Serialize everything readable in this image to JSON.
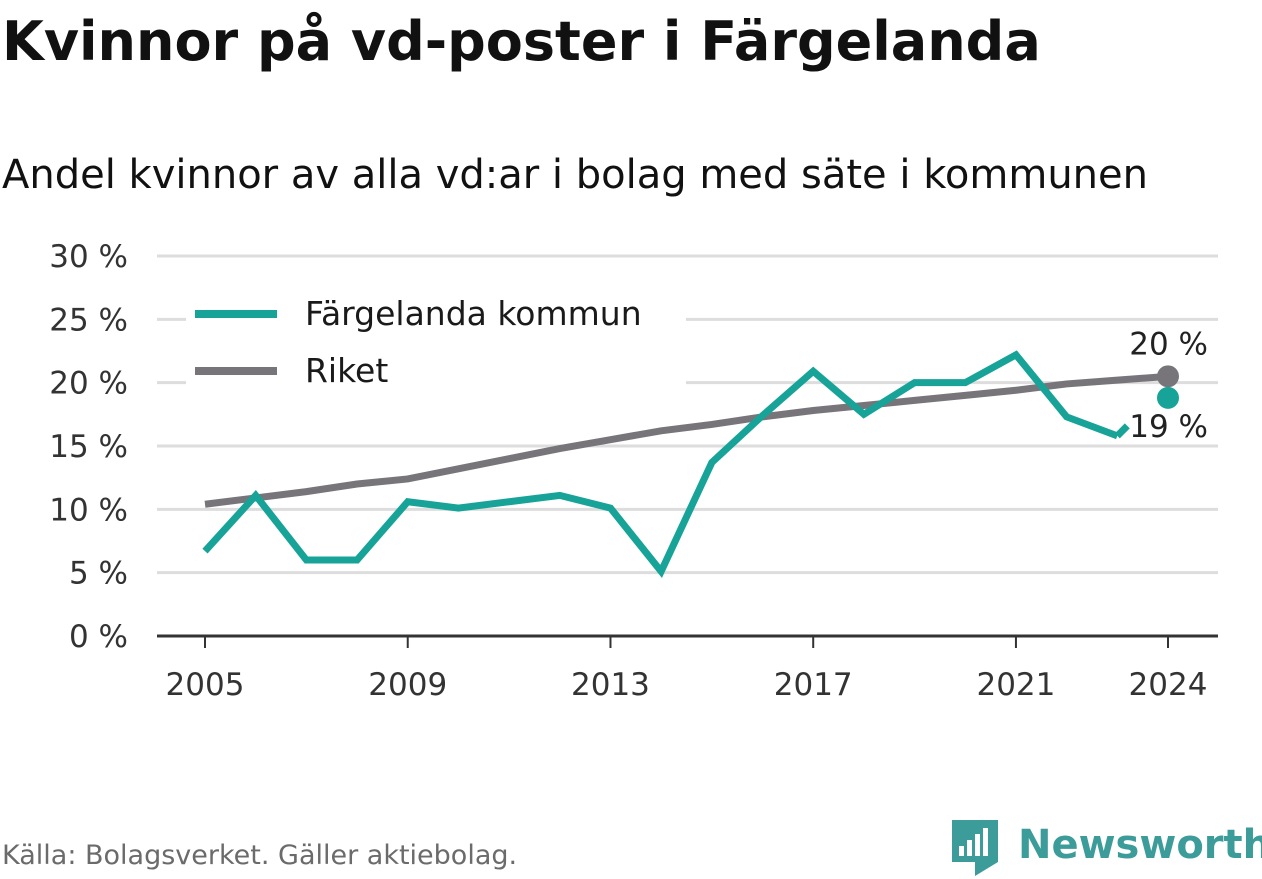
{
  "title": "Kvinnor på vd-poster i Färgelanda",
  "subtitle": "Andel kvinnor av alla vd:ar i bolag med säte i kommunen",
  "source": "Källa: Bolagsverket. Gäller aktiebolag.",
  "brand": {
    "name": "Newsworthy",
    "icon": "bar-chart-logo-icon",
    "color": "#3c9c9a"
  },
  "chart_data": {
    "type": "line",
    "x": [
      2005,
      2006,
      2007,
      2008,
      2009,
      2010,
      2011,
      2012,
      2013,
      2014,
      2015,
      2016,
      2017,
      2018,
      2019,
      2020,
      2021,
      2022,
      2023,
      2024
    ],
    "ylim": [
      0,
      30
    ],
    "y_ticks": [
      0,
      5,
      10,
      15,
      20,
      25,
      30
    ],
    "y_tick_labels": [
      "0 %",
      "5 %",
      "10 %",
      "15 %",
      "20 %",
      "25 %",
      "30 %"
    ],
    "x_ticks": [
      2005,
      2009,
      2013,
      2017,
      2021,
      2024
    ],
    "x_tick_labels": [
      "2005",
      "2009",
      "2013",
      "2017",
      "2021",
      "2024"
    ],
    "grid": true,
    "legend_position": "top-left",
    "series": [
      {
        "name": "Färgelanda kommun",
        "color": "#17a398",
        "values": [
          6.7,
          11.1,
          6.0,
          6.0,
          10.6,
          10.1,
          10.6,
          11.1,
          10.1,
          5.1,
          13.7,
          17.4,
          20.9,
          17.5,
          20.0,
          20.0,
          22.2,
          17.3,
          15.8,
          18.8
        ],
        "gap_before_last": true,
        "end_label": "19 %"
      },
      {
        "name": "Riket",
        "color": "#77757a",
        "values": [
          10.4,
          10.9,
          11.4,
          12.0,
          12.4,
          13.2,
          14.0,
          14.8,
          15.5,
          16.2,
          16.7,
          17.3,
          17.8,
          18.2,
          18.6,
          19.0,
          19.4,
          19.9,
          20.2,
          20.5
        ],
        "gap_before_last": false,
        "end_label": "20 %"
      }
    ]
  }
}
